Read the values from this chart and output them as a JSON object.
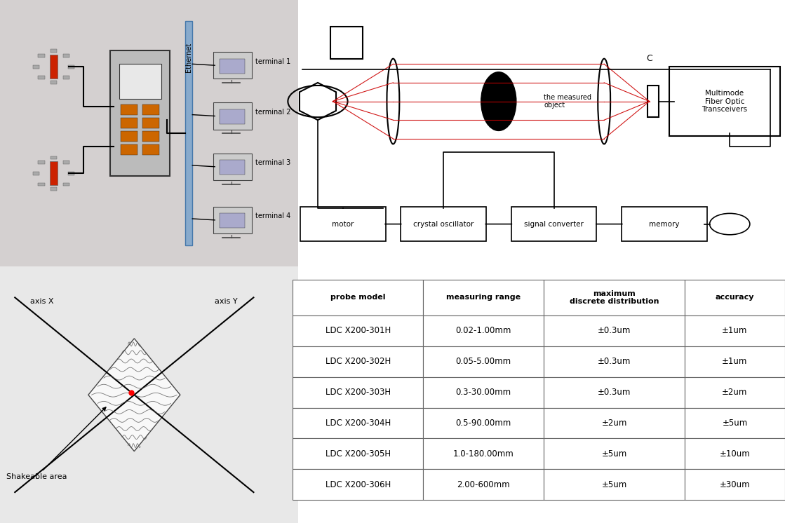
{
  "bg_color": "#d8d8d8",
  "white": "#ffffff",
  "black": "#000000",
  "red": "#cc0000",
  "light_blue": "#a8c8e8",
  "table_header": [
    "probe model",
    "measuring range",
    "maximum\ndiscrete distribution",
    "accuracy"
  ],
  "table_rows": [
    [
      "LDC X200-301H",
      "0.02-1.00mm",
      "±0.3um",
      "±1um"
    ],
    [
      "LDC X200-302H",
      "0.05-5.00mm",
      "±0.3um",
      "±1um"
    ],
    [
      "LDC X200-303H",
      "0.3-30.00mm",
      "±0.3um",
      "±2um"
    ],
    [
      "LDC X200-304H",
      "0.5-90.00mm",
      "±2um",
      "±5um"
    ],
    [
      "LDC X200-305H",
      "1.0-180.00mm",
      "±5um",
      "±10um"
    ],
    [
      "LDC X200-306H",
      "2.00-600mm",
      "±5um",
      "±30um"
    ]
  ],
  "diagram_boxes": [
    "motor",
    "crystal oscillator",
    "signal converter",
    "memory"
  ],
  "fiber_box": "Multimode\nFiber Optic\nTransceivers",
  "measured_object_label": "the measured\nobject"
}
